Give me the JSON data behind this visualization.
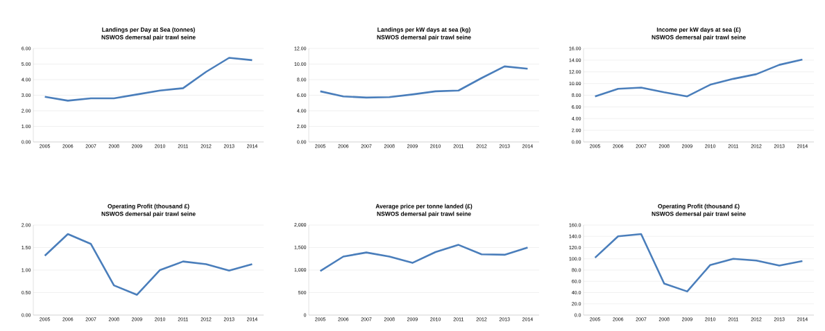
{
  "chart_data": [
    {
      "type": "line",
      "title": "Landings per Day at Sea (tonnes)",
      "subtitle": "NSWOS demersal pair trawl seine",
      "categories": [
        "2005",
        "2006",
        "2007",
        "2008",
        "2009",
        "2010",
        "2011",
        "2012",
        "2013",
        "2014"
      ],
      "series": [
        {
          "color": "#4a7ebb",
          "values": [
            2.9,
            2.65,
            2.8,
            2.8,
            3.05,
            3.3,
            3.45,
            4.5,
            5.4,
            5.25
          ]
        }
      ],
      "ylim": [
        0,
        6
      ],
      "yticks": [
        {
          "value": 0,
          "label": "0.00"
        },
        {
          "value": 1,
          "label": "1.00"
        },
        {
          "value": 2,
          "label": "2.00"
        },
        {
          "value": 3,
          "label": "3.00"
        },
        {
          "value": 4,
          "label": "4.00"
        },
        {
          "value": 5,
          "label": "5.00"
        },
        {
          "value": 6,
          "label": "6.00"
        }
      ],
      "grid": "y"
    },
    {
      "type": "line",
      "title": "Landings per kW days at sea (kg)",
      "subtitle": "NSWOS demersal pair trawl seine",
      "categories": [
        "2005",
        "2006",
        "2007",
        "2008",
        "2009",
        "2010",
        "2011",
        "2012",
        "2013",
        "2014"
      ],
      "series": [
        {
          "color": "#4a7ebb",
          "values": [
            6.5,
            5.85,
            5.7,
            5.75,
            6.1,
            6.5,
            6.6,
            8.2,
            9.7,
            9.4
          ]
        }
      ],
      "ylim": [
        0,
        12
      ],
      "yticks": [
        {
          "value": 0,
          "label": "0.00"
        },
        {
          "value": 2,
          "label": "2.00"
        },
        {
          "value": 4,
          "label": "4.00"
        },
        {
          "value": 6,
          "label": "6.00"
        },
        {
          "value": 8,
          "label": "8.00"
        },
        {
          "value": 10,
          "label": "10.00"
        },
        {
          "value": 12,
          "label": "12.00"
        }
      ],
      "grid": "y"
    },
    {
      "type": "line",
      "title": "Income per kW days at sea (£)",
      "subtitle": "NSWOS demersal pair trawl seine",
      "categories": [
        "2005",
        "2006",
        "2007",
        "2008",
        "2009",
        "2010",
        "2011",
        "2012",
        "2013",
        "2014"
      ],
      "series": [
        {
          "color": "#4a7ebb",
          "values": [
            7.8,
            9.1,
            9.3,
            8.5,
            7.8,
            9.8,
            10.8,
            11.6,
            13.2,
            14.1
          ]
        }
      ],
      "ylim": [
        0,
        16
      ],
      "yticks": [
        {
          "value": 0,
          "label": "0.00"
        },
        {
          "value": 2,
          "label": "2.00"
        },
        {
          "value": 4,
          "label": "4.00"
        },
        {
          "value": 6,
          "label": "6.00"
        },
        {
          "value": 8,
          "label": "8.00"
        },
        {
          "value": 10,
          "label": "10.00"
        },
        {
          "value": 12,
          "label": "12.00"
        },
        {
          "value": 14,
          "label": "14.00"
        },
        {
          "value": 16,
          "label": "16.00"
        }
      ],
      "grid": "y"
    },
    {
      "type": "line",
      "title": "Operating Profit (thousand £)",
      "subtitle": "NSWOS demersal pair trawl seine",
      "categories": [
        "2005",
        "2006",
        "2007",
        "2008",
        "2009",
        "2010",
        "2011",
        "2012",
        "2013",
        "2014"
      ],
      "series": [
        {
          "color": "#4a7ebb",
          "values": [
            1.32,
            1.8,
            1.58,
            0.66,
            0.45,
            1.0,
            1.19,
            1.13,
            0.99,
            1.13
          ]
        }
      ],
      "ylim": [
        0,
        2
      ],
      "yticks": [
        {
          "value": 0,
          "label": "0.00"
        },
        {
          "value": 0.5,
          "label": "0.50"
        },
        {
          "value": 1,
          "label": "1.00"
        },
        {
          "value": 1.5,
          "label": "1.50"
        },
        {
          "value": 2,
          "label": "2.00"
        }
      ],
      "grid": "y"
    },
    {
      "type": "line",
      "title": "Average price per tonne landed (£)",
      "subtitle": "NSWOS demersal pair trawl seine",
      "categories": [
        "2005",
        "2006",
        "2007",
        "2008",
        "2009",
        "2010",
        "2011",
        "2012",
        "2013",
        "2014"
      ],
      "series": [
        {
          "color": "#4a7ebb",
          "values": [
            980,
            1300,
            1390,
            1300,
            1160,
            1400,
            1560,
            1350,
            1340,
            1500
          ]
        }
      ],
      "ylim": [
        0,
        2000
      ],
      "yticks": [
        0,
        500,
        {
          "value": 1000,
          "label": "1,000"
        },
        {
          "value": 1500,
          "label": "1,500"
        },
        {
          "value": 2000,
          "label": "2,000"
        }
      ],
      "grid": "y"
    },
    {
      "type": "line",
      "title": "Operating Profit (thousand £)",
      "subtitle": "NSWOS demersal pair trawl seine",
      "categories": [
        "2005",
        "2006",
        "2007",
        "2008",
        "2009",
        "2010",
        "2011",
        "2012",
        "2013",
        "2014"
      ],
      "series": [
        {
          "color": "#4a7ebb",
          "values": [
            102,
            140,
            144,
            56,
            42,
            89,
            100,
            97,
            88,
            96
          ]
        }
      ],
      "ylim": [
        0,
        160
      ],
      "yticks": [
        {
          "value": 0,
          "label": "0.0"
        },
        {
          "value": 20,
          "label": "20.0"
        },
        {
          "value": 40,
          "label": "40.0"
        },
        {
          "value": 60,
          "label": "60.0"
        },
        {
          "value": 80,
          "label": "80.0"
        },
        {
          "value": 100,
          "label": "100.0"
        },
        {
          "value": 120,
          "label": "120.0"
        },
        {
          "value": 140,
          "label": "140.0"
        },
        {
          "value": 160,
          "label": "160.0"
        }
      ],
      "grid": "y"
    }
  ]
}
